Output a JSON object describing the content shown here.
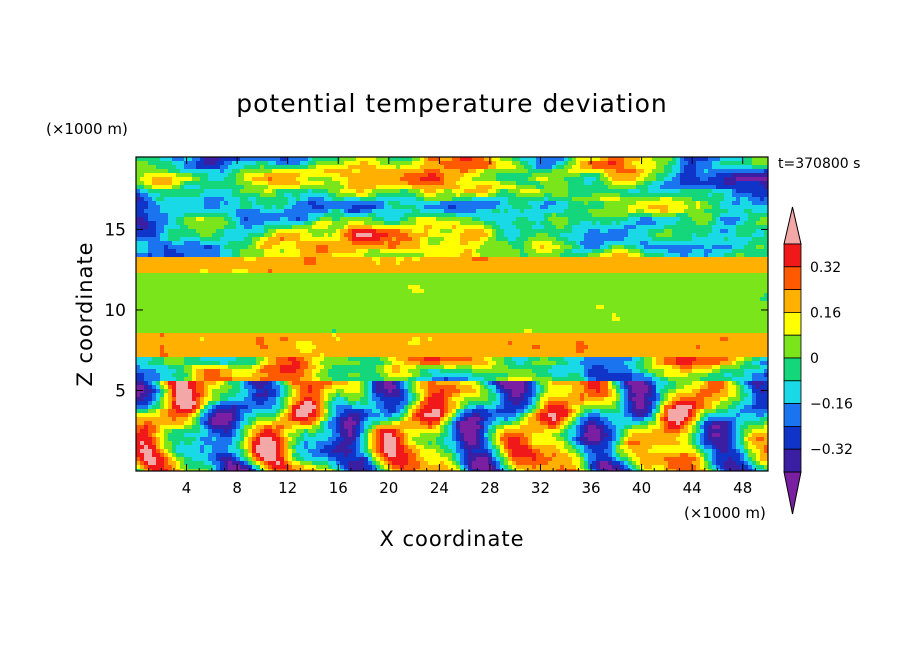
{
  "chart_data": {
    "type": "heatmap",
    "title": "potential temperature deviation",
    "xlabel": "X coordinate",
    "ylabel": "Z coordinate",
    "x_unit": "(×1000 m)",
    "y_unit": "(×1000 m)",
    "time_label": "t=370800 s",
    "xlim": [
      0,
      50
    ],
    "ylim": [
      0,
      19.5
    ],
    "x_ticks": [
      4,
      8,
      12,
      16,
      20,
      24,
      28,
      32,
      36,
      40,
      44,
      48
    ],
    "y_ticks": [
      5,
      10,
      15
    ],
    "colorbar": {
      "levels": [
        -0.4,
        -0.32,
        -0.24,
        -0.16,
        -0.08,
        0,
        0.08,
        0.16,
        0.24,
        0.32,
        0.4
      ],
      "labels": [
        {
          "value": 0.32,
          "text": "0.32"
        },
        {
          "value": 0.16,
          "text": "0.16"
        },
        {
          "value": 0,
          "text": "0"
        },
        {
          "value": -0.16,
          "text": "−0.16"
        },
        {
          "value": -0.32,
          "text": "−0.32"
        }
      ],
      "colors": [
        "#7a1fa2",
        "#3b1fa3",
        "#1034c8",
        "#1a74f0",
        "#19d9e6",
        "#14d67a",
        "#7be51c",
        "#ffff00",
        "#ffb000",
        "#ff5a00",
        "#f01818",
        "#f4a7a7"
      ],
      "extend": "both"
    },
    "zones": [
      {
        "z": [
          17.6,
          19.5
        ],
        "pattern": "mixed pink and purple",
        "range": [
          -0.5,
          0.5
        ]
      },
      {
        "z": [
          13.2,
          17.6
        ],
        "pattern": "purple and pink bands with scattered cyan and green",
        "range": [
          -0.45,
          0.45
        ]
      },
      {
        "z": [
          12.4,
          13.2
        ],
        "pattern": "orange and yellow band",
        "range": [
          0.15,
          0.3
        ]
      },
      {
        "z": [
          8.6,
          12.4
        ],
        "pattern": "green",
        "range": [
          -0.02,
          0.1
        ]
      },
      {
        "z": [
          7.2,
          8.6
        ],
        "pattern": "orange and yellow band",
        "range": [
          0.15,
          0.3
        ]
      },
      {
        "z": [
          5.5,
          7.2
        ],
        "pattern": "purple and pink blobs",
        "range": [
          -0.45,
          0.45
        ]
      },
      {
        "z": [
          0,
          5.5
        ],
        "pattern": "convective cells: red/pink plumes and blue/cyan downdrafts",
        "range": [
          -0.4,
          0.45
        ]
      }
    ]
  }
}
